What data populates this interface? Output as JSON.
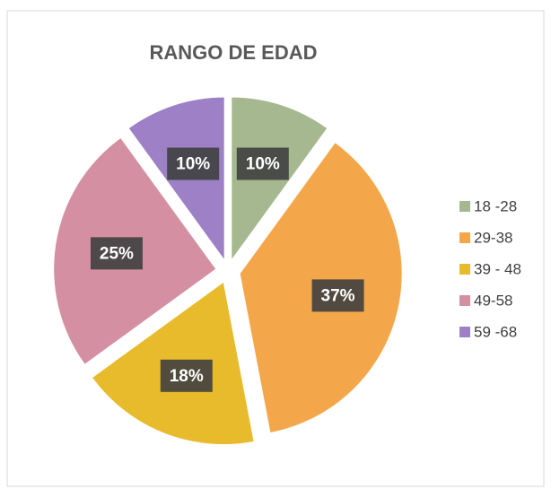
{
  "chart_data": {
    "type": "pie",
    "title": "RANGO DE EDAD",
    "categories": [
      "18 -28",
      "29-38",
      "39 - 48",
      "49-58",
      "59 -68"
    ],
    "values": [
      10,
      37,
      18,
      25,
      10
    ],
    "value_labels": [
      "10%",
      "37%",
      "18%",
      "25%",
      "10%"
    ],
    "colors": [
      "#a5b88f",
      "#f4a74a",
      "#e8bb2c",
      "#d490a2",
      "#9d80c6"
    ],
    "legend": "right"
  }
}
